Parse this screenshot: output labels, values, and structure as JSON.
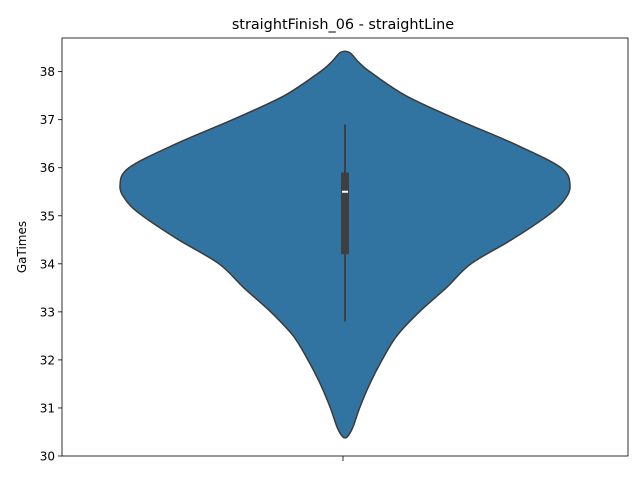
{
  "chart_data": {
    "type": "violin",
    "title": "straightFinish_06 - straightLine",
    "xlabel": "",
    "ylabel": "GaTimes",
    "ylim": [
      30,
      38.7
    ],
    "yticks": [
      30,
      31,
      32,
      33,
      34,
      35,
      36,
      37,
      38
    ],
    "categories": [
      ""
    ],
    "grid": false,
    "legend": "none",
    "colors": {
      "violin_fill": "#3274a1",
      "violin_edge": "#3b3b3b",
      "box": "#3f3f3f",
      "median": "#ffffff"
    },
    "violin": {
      "min": 30.4,
      "max": 38.4,
      "box": {
        "whisker_low": 32.8,
        "q1": 34.2,
        "median": 35.5,
        "q3": 35.9,
        "whisker_high": 36.9
      },
      "density_profile": [
        {
          "y": 30.4,
          "w": 0.01
        },
        {
          "y": 30.6,
          "w": 0.035
        },
        {
          "y": 31.0,
          "w": 0.065
        },
        {
          "y": 31.5,
          "w": 0.11
        },
        {
          "y": 32.0,
          "w": 0.165
        },
        {
          "y": 32.5,
          "w": 0.23
        },
        {
          "y": 33.0,
          "w": 0.33
        },
        {
          "y": 33.5,
          "w": 0.45
        },
        {
          "y": 34.0,
          "w": 0.56
        },
        {
          "y": 34.5,
          "w": 0.74
        },
        {
          "y": 35.0,
          "w": 0.9
        },
        {
          "y": 35.3,
          "w": 0.97
        },
        {
          "y": 35.62,
          "w": 1.0
        },
        {
          "y": 36.0,
          "w": 0.96
        },
        {
          "y": 36.5,
          "w": 0.75
        },
        {
          "y": 37.0,
          "w": 0.5
        },
        {
          "y": 37.5,
          "w": 0.27
        },
        {
          "y": 38.0,
          "w": 0.11
        },
        {
          "y": 38.2,
          "w": 0.06
        },
        {
          "y": 38.4,
          "w": 0.02
        }
      ]
    }
  }
}
